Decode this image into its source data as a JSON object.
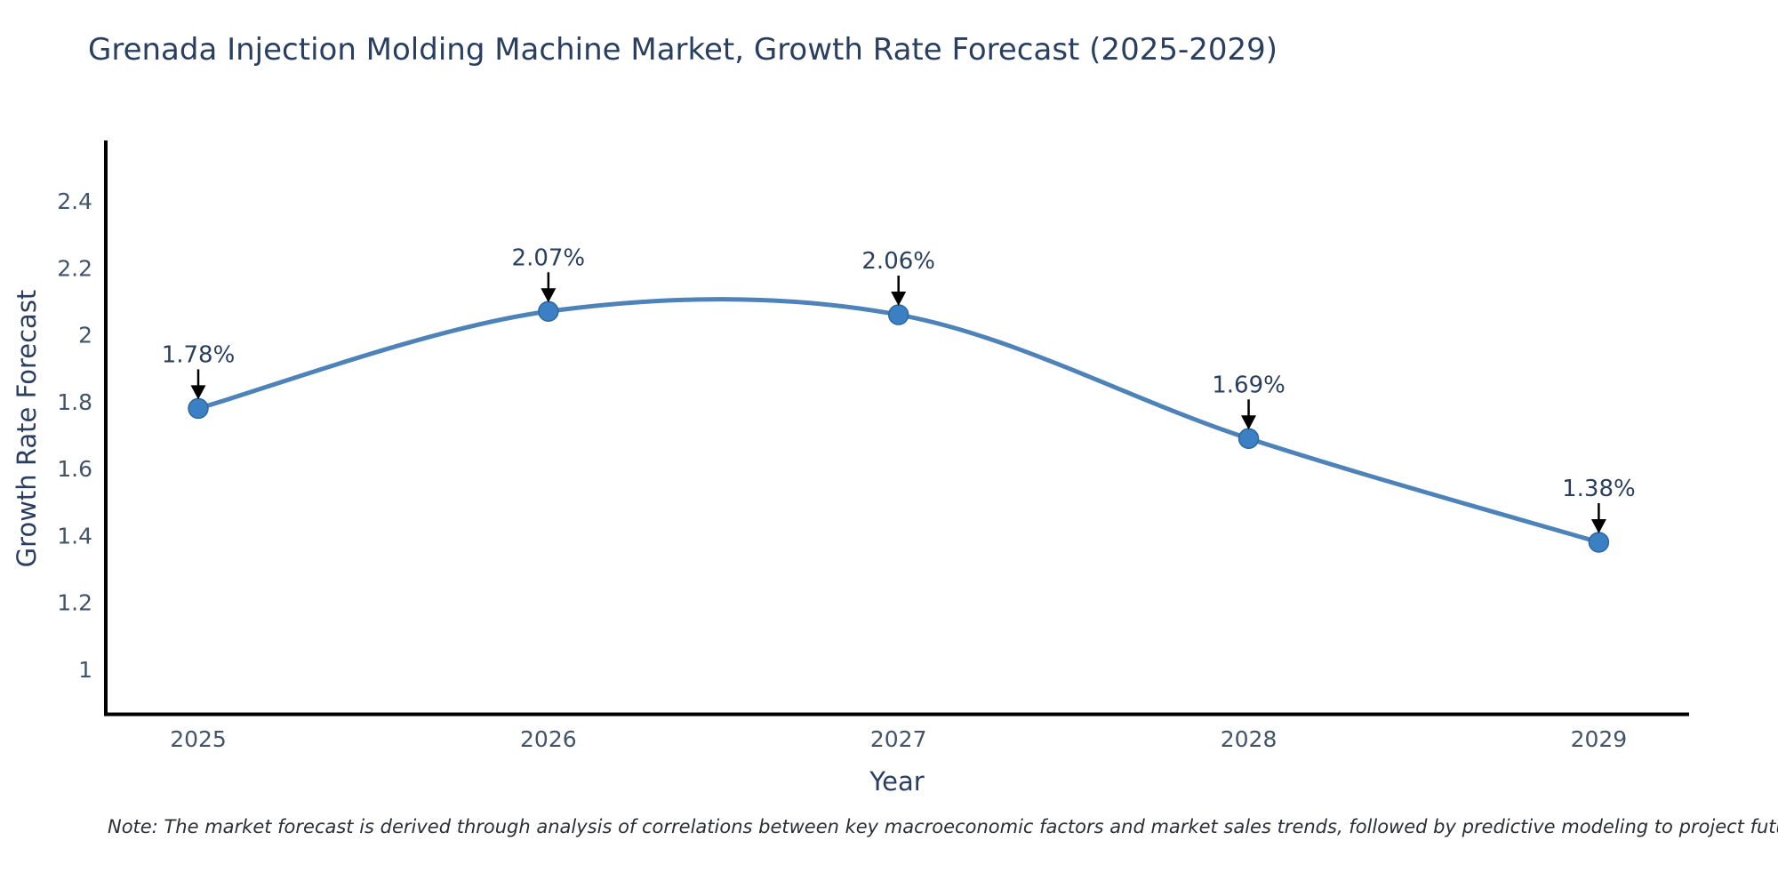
{
  "header": {
    "title": "Grenada Injection Molding Machine Market, Growth Rate Forecast (2025-2029)"
  },
  "chart_data": {
    "type": "line",
    "title": "Grenada Injection Molding Machine Market, Growth Rate Forecast (2025-2029)",
    "xlabel": "Year",
    "ylabel": "Growth Rate Forecast",
    "categories": [
      "2025",
      "2026",
      "2027",
      "2028",
      "2029"
    ],
    "series": [
      {
        "name": "Growth Rate Forecast",
        "values": [
          1.78,
          2.07,
          2.06,
          1.69,
          1.38
        ],
        "point_labels": [
          "1.78%",
          "2.07%",
          "2.06%",
          "1.69%",
          "1.38%"
        ]
      }
    ],
    "ytick_labels": [
      "1",
      "1.2",
      "1.4",
      "1.6",
      "1.8",
      "2",
      "2.2",
      "2.4"
    ],
    "ytick_values": [
      1,
      1.2,
      1.4,
      1.6,
      1.8,
      2,
      2.2,
      2.4
    ],
    "ylim": [
      0.87,
      2.57
    ],
    "line_shape": "spline",
    "grid": false,
    "legend_position": "none",
    "annotation_style": "down-arrow-to-point",
    "colors": {
      "line": "#4d83b8",
      "marker_fill": "#3b7fc4",
      "marker_edge": "#30689c",
      "axis_line": "#000000",
      "title_text": "#2a3f5f",
      "tick_text": "#42546b",
      "annotation_text": "#2a3f5f",
      "arrow": "#000000",
      "note_text": "#2b2f35"
    }
  },
  "footer": {
    "note": "Note: The market forecast is derived through analysis of correlations between key macroeconomic factors and market sales trends, followed by predictive modeling to project future sales"
  }
}
